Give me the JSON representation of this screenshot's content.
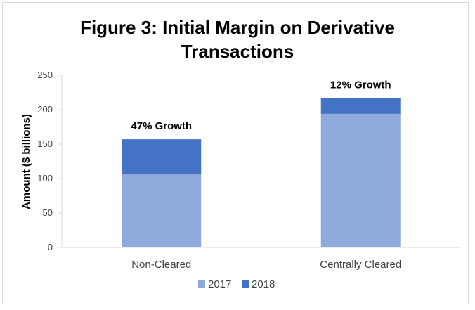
{
  "chart_data": {
    "type": "bar",
    "stacked": true,
    "title_lines": [
      "Figure 3: Initial Margin on Derivative",
      "Transactions"
    ],
    "ylabel": "Amount ($ billions)",
    "xlabel": "",
    "ylim": [
      0,
      250
    ],
    "yticks": [
      "0",
      "50",
      "100",
      "150",
      "200",
      "250"
    ],
    "categories": [
      "Non-Cleared",
      "Centrally Cleared"
    ],
    "series": [
      {
        "name": "2017",
        "values": [
          107,
          194
        ],
        "color": "#8faadc"
      },
      {
        "name": "2018",
        "values": [
          50,
          23
        ],
        "color": "#4472c4"
      }
    ],
    "annotations": [
      "47% Growth",
      "12% Growth"
    ],
    "grid": false,
    "legend_position": "bottom"
  }
}
